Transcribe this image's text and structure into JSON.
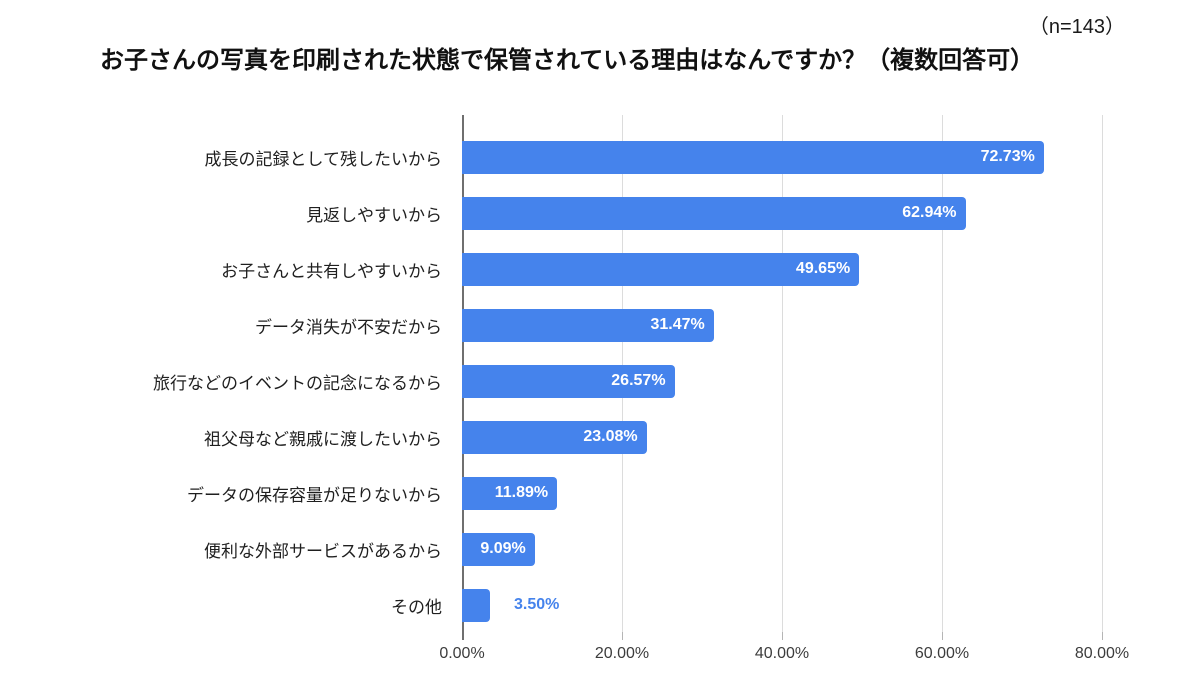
{
  "header": {
    "sample_size_label": "（n=143）"
  },
  "colors": {
    "bar": "#4583ec",
    "value_label_inside": "#ffffff",
    "value_label_outside": "#4583ec",
    "gridline": "#dcdcdc",
    "axis_line": "#6f6f6f",
    "text": "#1f1f1f",
    "background": "#ffffff"
  },
  "chart_data": {
    "type": "bar",
    "orientation": "horizontal",
    "title": "お子さんの写真を印刷された状態で保管されている理由はなんですか？（複数回答可）",
    "xlabel": "",
    "ylabel": "",
    "categories": [
      "成長の記録として残したいから",
      "見返しやすいから",
      "お子さんと共有しやすいから",
      "データ消失が不安だから",
      "旅行などのイベントの記念になるから",
      "祖父母など親戚に渡したいから",
      "データの保存容量が足りないから",
      "便利な外部サービスがあるから",
      "その他"
    ],
    "values": [
      72.73,
      62.94,
      49.65,
      31.47,
      26.57,
      23.08,
      11.89,
      9.09,
      3.5
    ],
    "value_labels": [
      "72.73%",
      "62.94%",
      "49.65%",
      "31.47%",
      "26.57%",
      "23.08%",
      "11.89%",
      "9.09%",
      "3.50%"
    ],
    "value_label_positions": [
      "inside",
      "inside",
      "inside",
      "inside",
      "inside",
      "inside",
      "inside",
      "inside",
      "outside"
    ],
    "xlim": [
      0,
      85
    ],
    "x_tick_values": [
      0,
      20,
      40,
      60,
      80
    ],
    "x_ticks": [
      "0.00%",
      "20.00%",
      "40.00%",
      "60.00%",
      "80.00%"
    ],
    "grid": "vertical",
    "legend": "none"
  }
}
